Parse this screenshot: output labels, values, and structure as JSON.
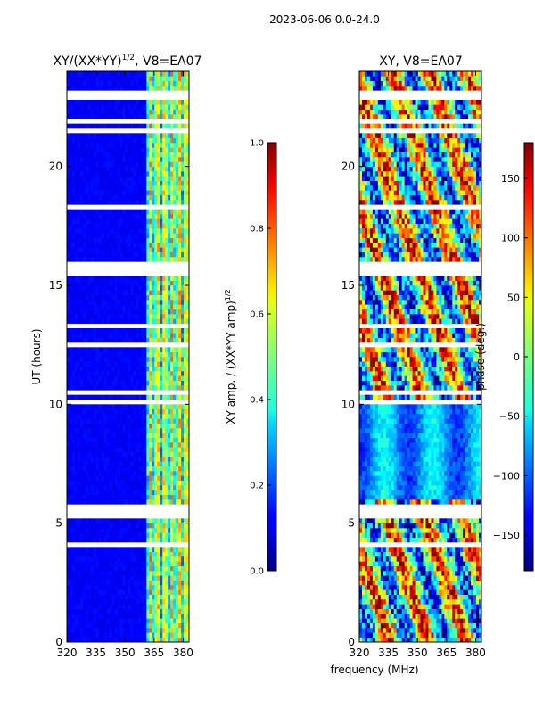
{
  "figure_title": "2023-06-06 0.0-24.0",
  "shared_xlabel": "frequency (MHz)",
  "chart_data": [
    {
      "type": "heatmap",
      "id": "amp",
      "title_main": "XY/(XX*YY)",
      "title_sup": "1/2",
      "title_rest": ", V8=EA07",
      "ylabel": "UT (hours)",
      "xlim": [
        320,
        383
      ],
      "ylim": [
        0,
        24
      ],
      "xticks": [
        320,
        335,
        350,
        365,
        380
      ],
      "yticks": [
        0,
        5,
        10,
        15,
        20
      ],
      "colorbar": {
        "label_main": "XY amp. / (XX*YY amp)",
        "label_sup": "1/2",
        "range": [
          0.0,
          1.0
        ],
        "ticks": [
          "0.0",
          "0.2",
          "0.4",
          "0.6",
          "0.8",
          "1.0"
        ],
        "colormap": "jet"
      },
      "notes": "Mostly near 0 (dark blue) below ~360 MHz; values ~0.3-0.7 in channels ~360-382 MHz; missing data gaps (white) around 5-6 h, 15.5 h and 23 h."
    },
    {
      "type": "heatmap",
      "id": "phase",
      "title_main": "XY, V8=EA07",
      "ylabel": "",
      "xlim": [
        320,
        383
      ],
      "ylim": [
        0,
        24
      ],
      "xticks": [
        320,
        335,
        350,
        365,
        380
      ],
      "yticks": [
        0,
        5,
        10,
        15,
        20
      ],
      "colorbar": {
        "label_main": "phase (deg.)",
        "range": [
          -180,
          180
        ],
        "ticks": [
          "150",
          "100",
          "50",
          "0",
          "−50",
          "−100",
          "−150"
        ],
        "tick_values": [
          150,
          100,
          50,
          0,
          -50,
          -100,
          -150
        ],
        "colormap": "jet"
      },
      "notes": "Phase spans full -180..180 deg with structured bands; blue (-100 deg) region ~5.5-10 h, mixed warm colors elsewhere."
    }
  ]
}
